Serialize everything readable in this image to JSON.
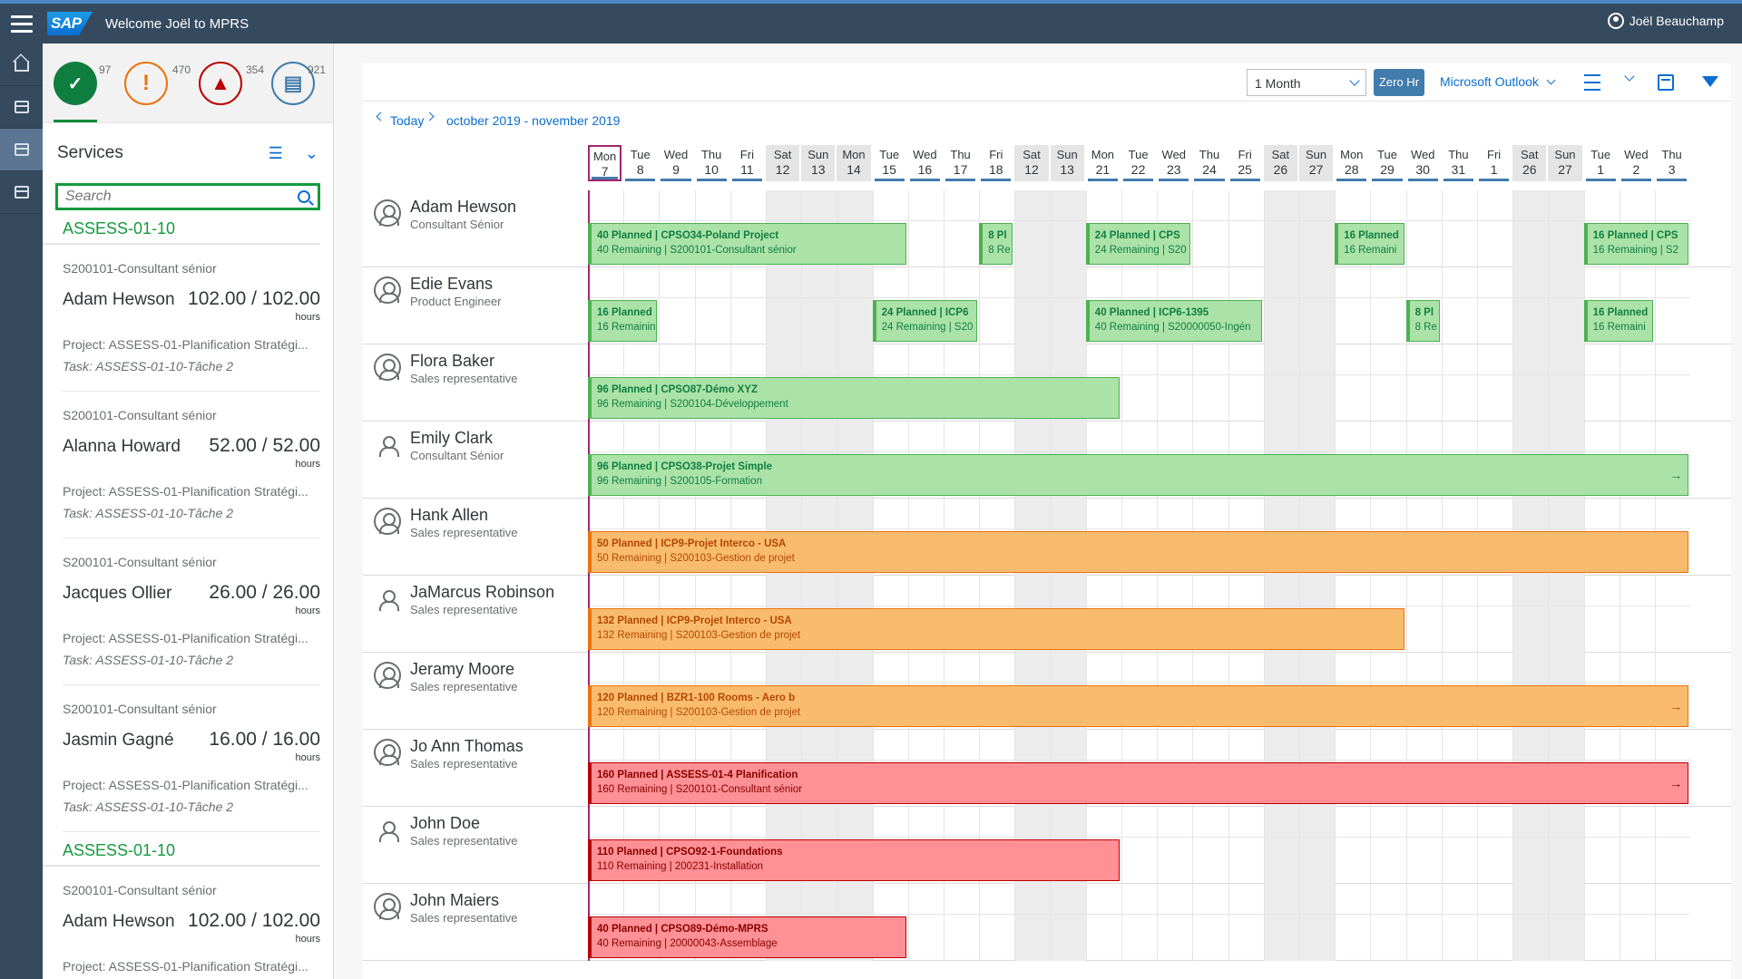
{
  "shell": {
    "logo": "SAP",
    "welcome": "Welcome Joël to MPRS",
    "user": "Joël Beauchamp"
  },
  "nav": [
    "home-icon",
    "tasks-icon",
    "calendar-planning-icon",
    "calendar-icon"
  ],
  "kpis": [
    {
      "icon": "✓",
      "count": "97",
      "color": "#107e3e"
    },
    {
      "icon": "!",
      "count": "470",
      "color": "#e9730c"
    },
    {
      "icon": "▲",
      "count": "354",
      "color": "#bb0000"
    },
    {
      "icon": "▤",
      "count": "921",
      "color": "#427cac"
    }
  ],
  "panel": {
    "title": "Services",
    "search_placeholder": "Search",
    "groups": [
      {
        "title": "ASSESS-01-10",
        "services": [
          {
            "code": "S200101-Consultant sénior",
            "name": "Adam Hewson",
            "hours": "102.00 / 102.00",
            "unit": "hours",
            "project": "Project: ASSESS-01-Planification Stratégi...",
            "task": "Task: ASSESS-01-10-Tâche 2"
          },
          {
            "code": "S200101-Consultant sénior",
            "name": "Alanna Howard",
            "hours": "52.00 / 52.00",
            "unit": "hours",
            "project": "Project: ASSESS-01-Planification Stratégi...",
            "task": "Task: ASSESS-01-10-Tâche 2"
          },
          {
            "code": "S200101-Consultant sénior",
            "name": "Jacques Ollier",
            "hours": "26.00 / 26.00",
            "unit": "hours",
            "project": "Project: ASSESS-01-Planification Stratégi...",
            "task": "Task: ASSESS-01-10-Tâche 2"
          },
          {
            "code": "S200101-Consultant sénior",
            "name": "Jasmin Gagné",
            "hours": "16.00 / 16.00",
            "unit": "hours",
            "project": "Project: ASSESS-01-Planification Stratégi...",
            "task": "Task: ASSESS-01-10-Tâche 2"
          }
        ]
      },
      {
        "title": "ASSESS-01-10",
        "services": [
          {
            "code": "S200101-Consultant sénior",
            "name": "Adam Hewson",
            "hours": "102.00 / 102.00",
            "unit": "hours",
            "project": "Project: ASSESS-01-Planification Stratégi...",
            "task": "Task: ASSESS-01-10-Tâche 2"
          }
        ]
      }
    ]
  },
  "toolbar": {
    "period": "1 Month",
    "zero_hr": "Zero Hr",
    "calendar_source": "Microsoft Outlook"
  },
  "navigation": {
    "today": "Today",
    "range": "october 2019 - november 2019"
  },
  "days": [
    {
      "dn": "Mon",
      "dd": "7",
      "we": false,
      "today": true
    },
    {
      "dn": "Tue",
      "dd": "8",
      "we": false
    },
    {
      "dn": "Wed",
      "dd": "9",
      "we": false
    },
    {
      "dn": "Thu",
      "dd": "10",
      "we": false
    },
    {
      "dn": "Fri",
      "dd": "11",
      "we": false
    },
    {
      "dn": "Sat",
      "dd": "12",
      "we": true
    },
    {
      "dn": "Sun",
      "dd": "13",
      "we": true
    },
    {
      "dn": "Mon",
      "dd": "14",
      "we": true
    },
    {
      "dn": "Tue",
      "dd": "15",
      "we": false
    },
    {
      "dn": "Wed",
      "dd": "16",
      "we": false
    },
    {
      "dn": "Thu",
      "dd": "17",
      "we": false
    },
    {
      "dn": "Fri",
      "dd": "18",
      "we": false
    },
    {
      "dn": "Sat",
      "dd": "12",
      "we": true
    },
    {
      "dn": "Sun",
      "dd": "13",
      "we": true
    },
    {
      "dn": "Mon",
      "dd": "21",
      "we": false
    },
    {
      "dn": "Tue",
      "dd": "22",
      "we": false
    },
    {
      "dn": "Wed",
      "dd": "23",
      "we": false
    },
    {
      "dn": "Thu",
      "dd": "24",
      "we": false
    },
    {
      "dn": "Fri",
      "dd": "25",
      "we": false
    },
    {
      "dn": "Sat",
      "dd": "26",
      "we": true
    },
    {
      "dn": "Sun",
      "dd": "27",
      "we": true
    },
    {
      "dn": "Mon",
      "dd": "28",
      "we": false
    },
    {
      "dn": "Tue",
      "dd": "29",
      "we": false
    },
    {
      "dn": "Wed",
      "dd": "30",
      "we": false
    },
    {
      "dn": "Thu",
      "dd": "31",
      "we": false
    },
    {
      "dn": "Fri",
      "dd": "1",
      "we": false
    },
    {
      "dn": "Sat",
      "dd": "26",
      "we": true
    },
    {
      "dn": "Sun",
      "dd": "27",
      "we": true
    },
    {
      "dn": "Tue",
      "dd": "1",
      "we": false
    },
    {
      "dn": "Wed",
      "dd": "2",
      "we": false
    },
    {
      "dn": "Thu",
      "dd": "3",
      "we": false
    }
  ],
  "resources": [
    {
      "name": "Adam Hewson",
      "role": "Consultant Sénior",
      "avatar": "circle",
      "tasks": [
        {
          "start": 0,
          "span": 9,
          "color": "green",
          "title": "40 Planned | CPSO34-Poland Project",
          "sub": "40 Remaining | S200101-Consultant sénior"
        },
        {
          "start": 11,
          "span": 1,
          "color": "green",
          "title": "8 Pl",
          "sub": "8 Re"
        },
        {
          "start": 14,
          "span": 3,
          "color": "green",
          "title": "24 Planned | CPS",
          "sub": "24 Remaining | S20"
        },
        {
          "start": 21,
          "span": 2,
          "color": "green",
          "title": "16 Planned",
          "sub": "16 Remaini"
        },
        {
          "start": 28,
          "span": 3,
          "color": "green",
          "title": "16 Planned | CPS",
          "sub": "16 Remaining | S2"
        }
      ]
    },
    {
      "name": "Edie Evans",
      "role": "Product Engineer",
      "avatar": "circle",
      "tasks": [
        {
          "start": 0,
          "span": 2,
          "color": "green",
          "title": "16 Planned",
          "sub": "16 Remainin"
        },
        {
          "start": 8,
          "span": 3,
          "color": "green",
          "title": "24 Planned | ICP6",
          "sub": "24 Remaining | S20"
        },
        {
          "start": 14,
          "span": 5,
          "color": "green",
          "title": "40 Planned | ICP6-1395",
          "sub": "40 Remaining | S20000050-Ingén"
        },
        {
          "start": 23,
          "span": 1,
          "color": "green",
          "title": "8 Pl",
          "sub": "8 Re"
        },
        {
          "start": 28,
          "span": 2,
          "color": "green",
          "title": "16 Planned",
          "sub": "16 Remaini"
        }
      ]
    },
    {
      "name": "Flora Baker",
      "role": "Sales representative",
      "avatar": "circle",
      "tasks": [
        {
          "start": 0,
          "span": 15,
          "color": "green",
          "title": "96 Planned | CPSO87-Démo XYZ",
          "sub": "96 Remaining | S200104-Développement"
        }
      ]
    },
    {
      "name": "Emily Clark",
      "role": "Consultant Sénior",
      "avatar": "plain",
      "tasks": [
        {
          "start": 0,
          "span": 31,
          "color": "green",
          "title": "96 Planned | CPSO38-Projet Simple",
          "sub": "96 Remaining | S200105-Formation",
          "more": true
        }
      ]
    },
    {
      "name": "Hank Allen",
      "role": "Sales representative",
      "avatar": "circle",
      "tasks": [
        {
          "start": 0,
          "span": 31,
          "color": "orange",
          "title": "50 Planned | ICP9-Projet Interco - USA",
          "sub": "50 Remaining | S200103-Gestion de projet"
        }
      ]
    },
    {
      "name": "JaMarcus Robinson",
      "role": "Sales representative",
      "avatar": "plain",
      "tasks": [
        {
          "start": 0,
          "span": 23,
          "color": "orange",
          "title": "132 Planned | ICP9-Projet Interco - USA",
          "sub": "132 Remaining | S200103-Gestion de projet"
        }
      ]
    },
    {
      "name": "Jeramy Moore",
      "role": "Sales representative",
      "avatar": "circle",
      "tasks": [
        {
          "start": 0,
          "span": 31,
          "color": "orange",
          "title": "120 Planned | BZR1-100 Rooms - Aero b",
          "sub": "120 Remaining | S200103-Gestion de projet",
          "more": true
        }
      ]
    },
    {
      "name": "Jo Ann Thomas",
      "role": "Sales representative",
      "avatar": "circle",
      "tasks": [
        {
          "start": 0,
          "span": 31,
          "color": "red",
          "title": "160 Planned | ASSESS-01-4 Planification",
          "sub": "160 Remaining | S200101-Consultant sénior",
          "more": true
        }
      ]
    },
    {
      "name": "John Doe",
      "role": "Sales representative",
      "avatar": "plain",
      "tasks": [
        {
          "start": 0,
          "span": 15,
          "color": "red",
          "title": "110 Planned | CPSO92-1-Foundations",
          "sub": "110 Remaining | 200231-Installation"
        }
      ]
    },
    {
      "name": "John Maiers",
      "role": "Sales representative",
      "avatar": "circle",
      "tasks": [
        {
          "start": 0,
          "span": 9,
          "color": "red",
          "title": "40 Planned | CPSO89-Démo-MPRS",
          "sub": "40 Remaining | 20000043-Assemblage"
        }
      ]
    }
  ]
}
